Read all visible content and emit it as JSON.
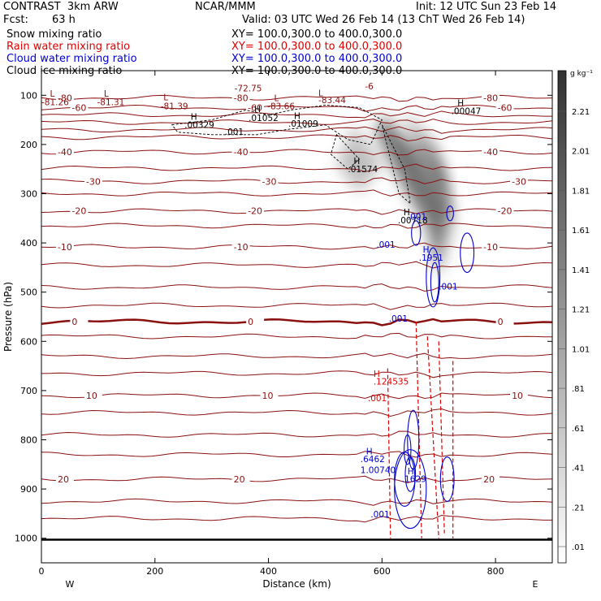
{
  "header": {
    "left_title": "CONTRAST  3km ARW",
    "center_title": "NCAR/MMM",
    "init": "Init: 12 UTC Sun 23 Feb 14",
    "fcst_label": "Fcst:",
    "fcst_value": "63 h",
    "valid": "Valid: 03 UTC Wed 26 Feb 14 (13 ChT Wed 26 Feb 14)"
  },
  "fields": [
    {
      "name": "Snow mixing ratio",
      "xy": "XY= 100.0,300.0 to 400.0,300.0",
      "color": "#000000"
    },
    {
      "name": "Rain water mixing ratio",
      "xy": "XY= 100.0,300.0 to 400.0,300.0",
      "color": "#e00000"
    },
    {
      "name": "Cloud water mixing ratio",
      "xy": "XY= 100.0,300.0 to 400.0,300.0",
      "color": "#0000d0"
    },
    {
      "name": "Cloud ice mixing ratio",
      "xy": "XY= 100.0,300.0 to 400.0,300.0",
      "color": "#000000"
    }
  ],
  "chart_data": {
    "type": "cross-section",
    "xlabel": "Distance (km)",
    "ylabel": "Pressure (hPa)",
    "xlim": [
      0,
      900
    ],
    "ylim": [
      1050,
      50
    ],
    "x_ticks": [
      0,
      200,
      400,
      600,
      800
    ],
    "y_ticks": [
      100,
      200,
      300,
      400,
      500,
      600,
      700,
      800,
      900,
      1000
    ],
    "x_end_labels": {
      "left": "W",
      "right": "E"
    },
    "colorbar": {
      "unit": "g kg⁻¹",
      "levels": [
        "2.21",
        "2.01",
        "1.81",
        "1.61",
        "1.41",
        "1.21",
        "1.01",
        ".81",
        ".61",
        ".41",
        ".21",
        ".01"
      ]
    },
    "temperature_contours": [
      {
        "p": 105,
        "label": "-80"
      },
      {
        "p": 125,
        "label": "-60"
      },
      {
        "p": 140,
        "label": ""
      },
      {
        "p": 155,
        "label": ""
      },
      {
        "p": 170,
        "label": ""
      },
      {
        "p": 185,
        "label": ""
      },
      {
        "p": 215,
        "label": "-40"
      },
      {
        "p": 248,
        "label": ""
      },
      {
        "p": 275,
        "label": "-30"
      },
      {
        "p": 300,
        "label": ""
      },
      {
        "p": 335,
        "label": "-20"
      },
      {
        "p": 365,
        "label": ""
      },
      {
        "p": 408,
        "label": "-10"
      },
      {
        "p": 445,
        "label": ""
      },
      {
        "p": 490,
        "label": ""
      },
      {
        "p": 527,
        "label": ""
      },
      {
        "p": 560,
        "label": "0",
        "bold": true
      },
      {
        "p": 590,
        "label": ""
      },
      {
        "p": 630,
        "label": ""
      },
      {
        "p": 665,
        "label": ""
      },
      {
        "p": 710,
        "label": "10"
      },
      {
        "p": 745,
        "label": ""
      },
      {
        "p": 790,
        "label": ""
      },
      {
        "p": 830,
        "label": ""
      },
      {
        "p": 880,
        "label": "20"
      },
      {
        "p": 925,
        "label": ""
      },
      {
        "p": 960,
        "label": ""
      }
    ],
    "extrema_labels": [
      {
        "x": 15,
        "p": 103,
        "text": "L",
        "c": "#8b1010"
      },
      {
        "x": 0,
        "p": 120,
        "text": "-81.26",
        "c": "#8b1010"
      },
      {
        "x": 110,
        "p": 103,
        "text": "L",
        "c": "#8b1010"
      },
      {
        "x": 98,
        "p": 120,
        "text": "-81.31",
        "c": "#8b1010"
      },
      {
        "x": 215,
        "p": 110,
        "text": "L",
        "c": "#8b1010"
      },
      {
        "x": 210,
        "p": 128,
        "text": "-81.39",
        "c": "#8b1010"
      },
      {
        "x": 340,
        "p": 92,
        "text": "-72.75",
        "c": "#8b1010"
      },
      {
        "x": 488,
        "p": 102,
        "text": "L",
        "c": "#8b1010"
      },
      {
        "x": 488,
        "p": 116,
        "text": "-83.44",
        "c": "#8b1010"
      },
      {
        "x": 410,
        "p": 112,
        "text": "L",
        "c": "#8b1010"
      },
      {
        "x": 398,
        "p": 128,
        "text": "-83.66",
        "c": "#8b1010"
      },
      {
        "x": 570,
        "p": 88,
        "text": "-6",
        "c": "#8b1010"
      },
      {
        "x": 263,
        "p": 150,
        "text": "H",
        "c": "#000"
      },
      {
        "x": 252,
        "p": 166,
        "text": ".00329",
        "c": "#000"
      },
      {
        "x": 375,
        "p": 134,
        "text": "H",
        "c": "#000"
      },
      {
        "x": 365,
        "p": 152,
        "text": ".01052",
        "c": "#000"
      },
      {
        "x": 445,
        "p": 148,
        "text": "H",
        "c": "#000"
      },
      {
        "x": 435,
        "p": 164,
        "text": ".01009",
        "c": "#000"
      },
      {
        "x": 733,
        "p": 122,
        "text": "H",
        "c": "#000"
      },
      {
        "x": 722,
        "p": 138,
        "text": ".00047",
        "c": "#000"
      },
      {
        "x": 323,
        "p": 180,
        "text": ".001",
        "c": "#000"
      },
      {
        "x": 550,
        "p": 240,
        "text": "H",
        "c": "#000"
      },
      {
        "x": 540,
        "p": 256,
        "text": ".01574",
        "c": "#000"
      },
      {
        "x": 638,
        "p": 344,
        "text": "H",
        "c": "#000"
      },
      {
        "x": 628,
        "p": 360,
        "text": ".00718",
        "c": "#000"
      },
      {
        "x": 645,
        "p": 353,
        "text": ".001",
        "c": "#0000d0"
      },
      {
        "x": 590,
        "p": 410,
        "text": ".001",
        "c": "#0000d0"
      },
      {
        "x": 672,
        "p": 420,
        "text": "H",
        "c": "#0000d0"
      },
      {
        "x": 665,
        "p": 436,
        "text": ".1951",
        "c": "#0000d0"
      },
      {
        "x": 700,
        "p": 495,
        "text": ".001",
        "c": "#0000d0"
      },
      {
        "x": 612,
        "p": 560,
        "text": ".001",
        "c": "#0000d0"
      },
      {
        "x": 585,
        "p": 672,
        "text": "H",
        "c": "#e00000"
      },
      {
        "x": 585,
        "p": 688,
        "text": ".124535",
        "c": "#e00000"
      },
      {
        "x": 575,
        "p": 722,
        "text": ".001",
        "c": "#e00000"
      },
      {
        "x": 572,
        "p": 830,
        "text": "H",
        "c": "#0000d0"
      },
      {
        "x": 562,
        "p": 845,
        "text": ".6462",
        "c": "#0000d0"
      },
      {
        "x": 562,
        "p": 868,
        "text": "1.00740",
        "c": "#0000d0"
      },
      {
        "x": 645,
        "p": 870,
        "text": "H",
        "c": "#0000d0"
      },
      {
        "x": 635,
        "p": 886,
        "text": ".1629",
        "c": "#0000d0"
      },
      {
        "x": 580,
        "p": 958,
        "text": ".001",
        "c": "#0000d0"
      }
    ]
  }
}
